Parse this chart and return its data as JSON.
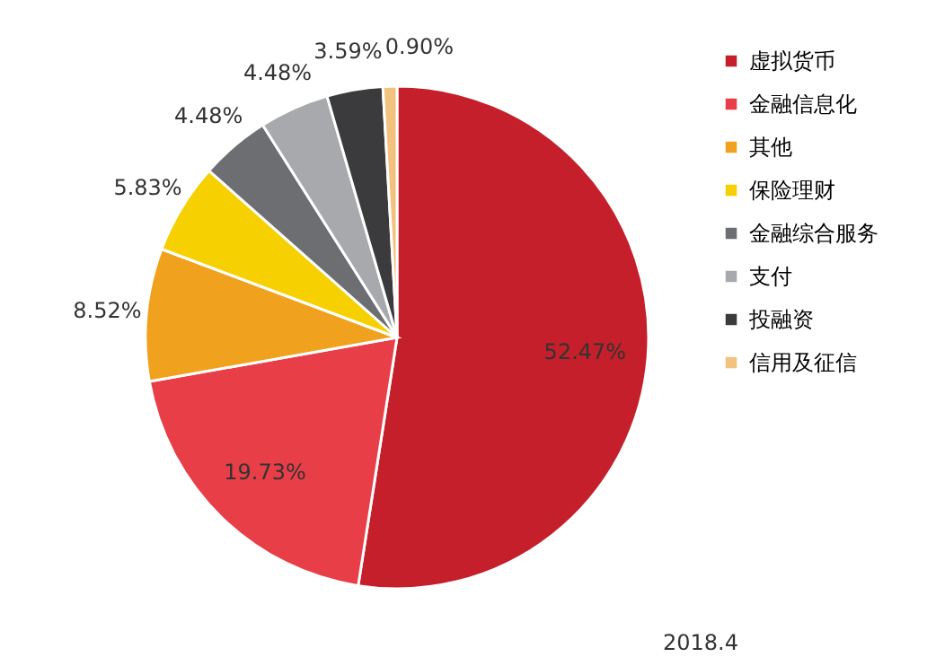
{
  "chart_data": {
    "type": "pie",
    "categories": [
      "虚拟货币",
      "金融信息化",
      "其他",
      "保险理财",
      "金融综合服务",
      "支付",
      "投融资",
      "信用及征信"
    ],
    "values": [
      52.47,
      19.73,
      8.52,
      5.83,
      4.48,
      4.48,
      3.59,
      0.9
    ],
    "value_labels": [
      "52.47%",
      "19.73%",
      "8.52%",
      "5.83%",
      "4.48%",
      "4.48%",
      "3.59%",
      "0.90%"
    ],
    "colors": [
      "#c41f2a",
      "#e83e48",
      "#f0a21e",
      "#f6d000",
      "#6d6e71",
      "#a7a9ac",
      "#3b3b3d",
      "#f2c27e"
    ],
    "legend": "right",
    "annotations": [
      "2018.4"
    ]
  }
}
